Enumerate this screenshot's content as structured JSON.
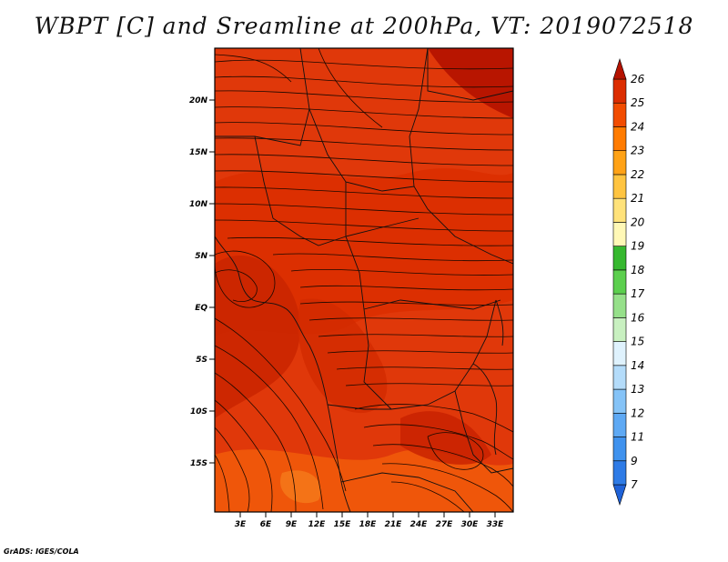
{
  "title": "WBPT [C] and Sreamline at 200hPa, VT: 2019072518",
  "credit": "GrADS: IGES/COLA",
  "axes": {
    "lat_ticks": [
      "20N",
      "15N",
      "10N",
      "5N",
      "EQ",
      "5S",
      "10S",
      "15S"
    ],
    "lon_ticks": [
      "3E",
      "6E",
      "9E",
      "12E",
      "15E",
      "18E",
      "21E",
      "24E",
      "27E",
      "30E",
      "33E"
    ]
  },
  "colorbar": {
    "labels": [
      "7",
      "9",
      "11",
      "12",
      "13",
      "14",
      "15",
      "16",
      "17",
      "18",
      "19",
      "20",
      "21",
      "22",
      "23",
      "24",
      "25",
      "26"
    ],
    "colors": [
      "#1f62d8",
      "#2e7be6",
      "#3f92ee",
      "#5ea9f4",
      "#85c3f7",
      "#b4dcfa",
      "#dff2fd",
      "#c8f0c0",
      "#96e08a",
      "#5ccf4e",
      "#36b82f",
      "#fff8b6",
      "#ffe27a",
      "#ffc440",
      "#ffa216",
      "#ff7b00",
      "#f24c00",
      "#dc2d00",
      "#b51200"
    ]
  }
}
